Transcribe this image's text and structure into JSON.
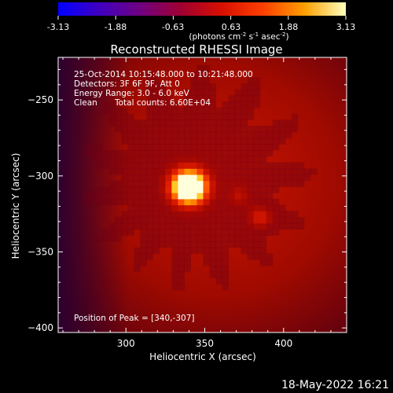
{
  "chart_data": {
    "type": "heatmap",
    "title": "Reconstructed RHESSI Image",
    "xlabel": "Heliocentric X (arcsec)",
    "ylabel": "Heliocentric Y (arcsec)",
    "xlim": [
      257,
      440
    ],
    "ylim": [
      -403,
      -222
    ],
    "x_ticks": [
      300,
      350,
      400
    ],
    "y_ticks": [
      -250,
      -300,
      -350,
      -400
    ],
    "colorbar": {
      "min": -3.13,
      "max": 3.13,
      "ticks": [
        "-3.13",
        "-1.88",
        "-0.63",
        "0.63",
        "1.88",
        "3.13"
      ],
      "unit_label": "(photons cm",
      "unit_exp1": "-2",
      "unit_mid": " s",
      "unit_exp2": "-1",
      "unit_mid2": " asec",
      "unit_exp3": "-2",
      "unit_end": ")",
      "colors": [
        "#0000ff",
        "#4000c0",
        "#700080",
        "#a00030",
        "#d81000",
        "#ff4000",
        "#ffa000",
        "#ffffc0"
      ]
    },
    "annotations": {
      "line1": "25-Oct-2014 10:15:48.000 to 10:21:48.000",
      "line2": "Detectors: 3F 6F 9F, Att 0",
      "line3": "Energy Range: 3.0 - 6.0 keV",
      "line4_a": "Clean",
      "line4_b": "Total counts: 6.60E+04",
      "peak": "Position of Peak = [340,-307]"
    },
    "peak": [
      340,
      -307
    ],
    "sources": [
      {
        "x": 340,
        "y": -307,
        "sigma": 9,
        "amp": 3.1
      },
      {
        "x": 385,
        "y": -328,
        "sigma": 6,
        "amp": 1.1
      },
      {
        "x": 372,
        "y": -312,
        "sigma": 5,
        "amp": 0.8
      },
      {
        "x": 345,
        "y": -300,
        "sigma": 70,
        "amp": 0.95
      }
    ]
  },
  "footer_timestamp": "18-May-2022 16:21"
}
